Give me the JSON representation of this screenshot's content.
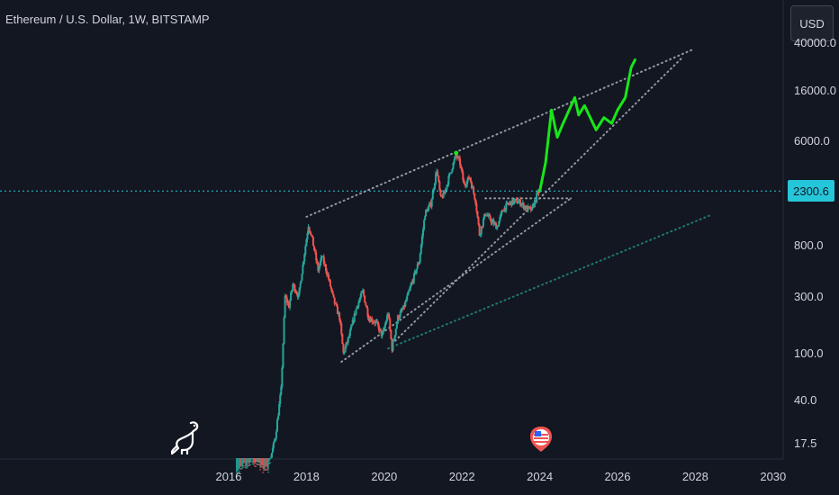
{
  "header": {
    "symbol_title": "Ethereum / U.S. Dollar, 1W, BITSTAMP",
    "currency_label": "USD"
  },
  "price_badge": {
    "value": "2300.6"
  },
  "colors": {
    "background": "#131722",
    "up_candle": "#26a69a",
    "down_candle": "#ef5350",
    "forecast_line": "#19e619",
    "channel_dots": "#9598a1",
    "support_dots": "#1f7a73",
    "price_line": "#26c6da"
  },
  "icons": {
    "logo": "dinosaur-icon",
    "event": "us-flag-icon"
  },
  "chart_data": {
    "type": "candlestick",
    "title": "Ethereum / U.S. Dollar, 1W, BITSTAMP",
    "y_scale": "log",
    "ylim": [
      13,
      40000
    ],
    "xlim": [
      2014.5,
      2030
    ],
    "ytick_labels": [
      "40000.0",
      "16000.0",
      "6000.0",
      "2300.6",
      "800.0",
      "300.0",
      "100.0",
      "40.0",
      "17.5"
    ],
    "ytick_values": [
      40000,
      16000,
      6000,
      2300.6,
      800,
      300,
      100,
      40,
      17.5
    ],
    "xtick_labels": [
      "2016",
      "2018",
      "2020",
      "2022",
      "2024",
      "2026",
      "2028",
      "2030"
    ],
    "xtick_values": [
      2016,
      2018,
      2020,
      2022,
      2024,
      2026,
      2028,
      2030
    ],
    "current_price": 2300.6,
    "price_path": [
      [
        2016.2,
        10
      ],
      [
        2016.6,
        12
      ],
      [
        2017.0,
        10
      ],
      [
        2017.2,
        20
      ],
      [
        2017.35,
        50
      ],
      [
        2017.45,
        300
      ],
      [
        2017.55,
        250
      ],
      [
        2017.65,
        380
      ],
      [
        2017.8,
        300
      ],
      [
        2017.95,
        700
      ],
      [
        2018.05,
        1200
      ],
      [
        2018.15,
        900
      ],
      [
        2018.3,
        500
      ],
      [
        2018.4,
        650
      ],
      [
        2018.55,
        450
      ],
      [
        2018.7,
        280
      ],
      [
        2018.85,
        200
      ],
      [
        2018.95,
        100
      ],
      [
        2019.1,
        140
      ],
      [
        2019.3,
        250
      ],
      [
        2019.45,
        330
      ],
      [
        2019.6,
        200
      ],
      [
        2019.8,
        180
      ],
      [
        2019.95,
        140
      ],
      [
        2020.1,
        220
      ],
      [
        2020.2,
        110
      ],
      [
        2020.35,
        200
      ],
      [
        2020.5,
        240
      ],
      [
        2020.7,
        380
      ],
      [
        2020.9,
        600
      ],
      [
        2021.05,
        1500
      ],
      [
        2021.2,
        1800
      ],
      [
        2021.35,
        3500
      ],
      [
        2021.45,
        2000
      ],
      [
        2021.55,
        2200
      ],
      [
        2021.7,
        3300
      ],
      [
        2021.85,
        4600
      ],
      [
        2021.95,
        3900
      ],
      [
        2022.05,
        2600
      ],
      [
        2022.2,
        3000
      ],
      [
        2022.35,
        1900
      ],
      [
        2022.45,
        1000
      ],
      [
        2022.6,
        1500
      ],
      [
        2022.75,
        1300
      ],
      [
        2022.9,
        1150
      ],
      [
        2023.05,
        1600
      ],
      [
        2023.2,
        1800
      ],
      [
        2023.35,
        1900
      ],
      [
        2023.5,
        1850
      ],
      [
        2023.65,
        1650
      ],
      [
        2023.8,
        1600
      ],
      [
        2023.92,
        2100
      ],
      [
        2024.0,
        2300
      ]
    ],
    "forecast_path": [
      [
        2024.0,
        2300
      ],
      [
        2024.15,
        4000
      ],
      [
        2024.3,
        11000
      ],
      [
        2024.45,
        6500
      ],
      [
        2024.6,
        8500
      ],
      [
        2024.9,
        14000
      ],
      [
        2025.0,
        10000
      ],
      [
        2025.15,
        12000
      ],
      [
        2025.45,
        7500
      ],
      [
        2025.65,
        9500
      ],
      [
        2025.85,
        8500
      ],
      [
        2026.0,
        11000
      ],
      [
        2026.2,
        14000
      ],
      [
        2026.35,
        25000
      ],
      [
        2026.45,
        29000
      ]
    ],
    "trendlines": [
      {
        "style": "dotted",
        "color": "channel",
        "from": [
          2018.0,
          1400
        ],
        "to": [
          2027.9,
          35000
        ]
      },
      {
        "style": "dotted",
        "color": "channel",
        "from": [
          2020.2,
          120
        ],
        "to": [
          2027.65,
          30000
        ]
      },
      {
        "style": "dotted",
        "color": "channel",
        "from": [
          2018.9,
          85
        ],
        "to": [
          2024.8,
          2000
        ]
      },
      {
        "style": "dotted",
        "color": "channel",
        "from": [
          2022.6,
          2000
        ],
        "to": [
          2024.8,
          2000
        ]
      },
      {
        "style": "dotted",
        "color": "support",
        "from": [
          2020.1,
          110
        ],
        "to": [
          2028.4,
          1450
        ]
      }
    ]
  }
}
